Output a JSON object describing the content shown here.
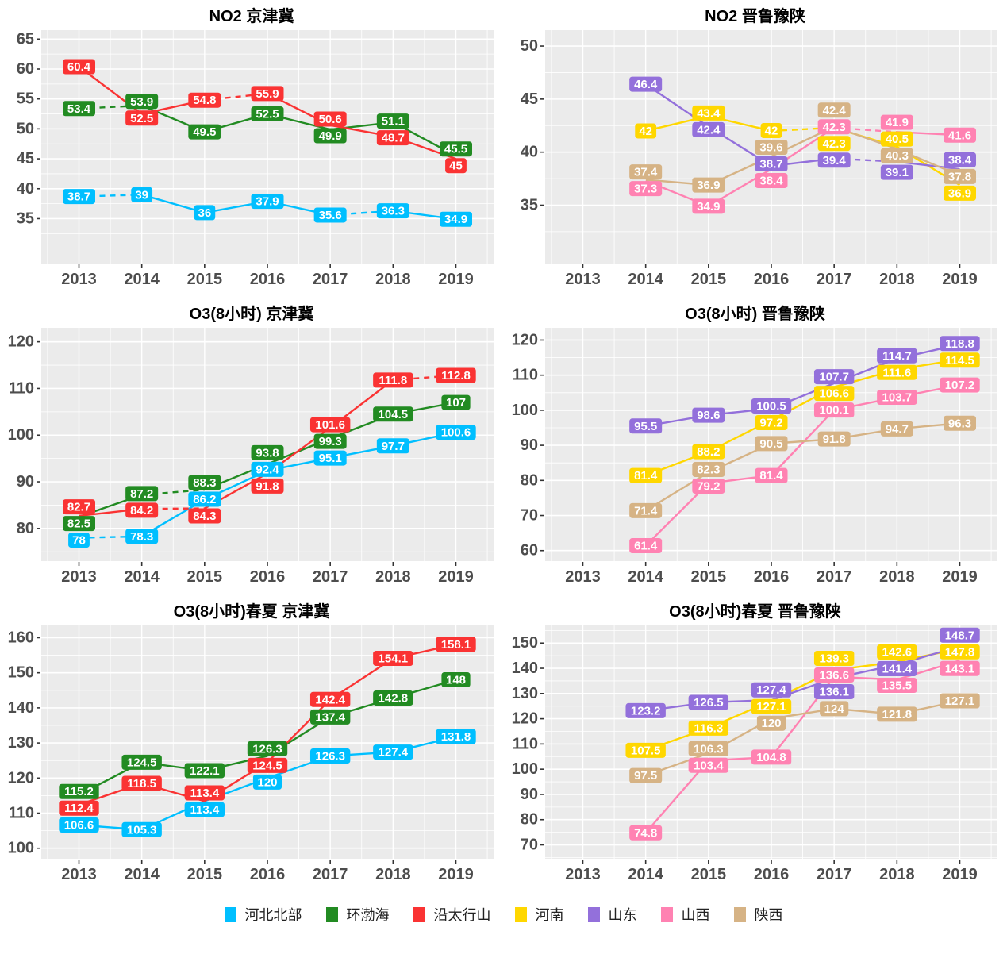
{
  "palette": {
    "河北北部": "#00BFFF",
    "环渤海": "#228B22",
    "沿太行山": "#FA3333",
    "河南": "#FFD700",
    "山东": "#9370DB",
    "山西": "#FF82B2",
    "陕西": "#D6B385"
  },
  "legend": {
    "items": [
      {
        "label": "河北北部",
        "color": "#00BFFF"
      },
      {
        "label": "环渤海",
        "color": "#228B22"
      },
      {
        "label": "沿太行山",
        "color": "#FA3333"
      },
      {
        "label": "河南",
        "color": "#FFD700"
      },
      {
        "label": "山东",
        "color": "#9370DB"
      },
      {
        "label": "山西",
        "color": "#FF82B2"
      },
      {
        "label": "陕西",
        "color": "#D6B385"
      }
    ]
  },
  "chart_data": [
    {
      "type": "line",
      "title": "NO2 京津冀",
      "categories": [
        "2013",
        "2014",
        "2015",
        "2016",
        "2017",
        "2018",
        "2019"
      ],
      "ylim": [
        27.5,
        66.5
      ],
      "yticks": [
        35,
        40,
        45,
        50,
        55,
        60,
        65
      ],
      "grid": true,
      "legend_position": "bottom-shared",
      "series": [
        {
          "name": "河北北部",
          "values": [
            38.7,
            39,
            36,
            37.9,
            35.6,
            36.3,
            34.9
          ],
          "dashed_segments": [
            0,
            4
          ]
        },
        {
          "name": "环渤海",
          "values": [
            53.4,
            53.9,
            49.5,
            52.5,
            49.9,
            51.1,
            45.5
          ],
          "dashed_segments": [
            0
          ]
        },
        {
          "name": "沿太行山",
          "values": [
            60.4,
            52.5,
            54.8,
            55.9,
            50.6,
            48.7,
            45
          ],
          "dashed_segments": [
            2
          ]
        }
      ]
    },
    {
      "type": "line",
      "title": "NO2 晋鲁豫陕",
      "categories": [
        "2013",
        "2014",
        "2015",
        "2016",
        "2017",
        "2018",
        "2019"
      ],
      "ylim": [
        29.5,
        51.5
      ],
      "yticks": [
        35,
        40,
        45,
        50
      ],
      "grid": true,
      "legend_position": "bottom-shared",
      "series": [
        {
          "name": "河南",
          "values": [
            null,
            42,
            43.4,
            42,
            42.3,
            40.5,
            36.9
          ],
          "dashed_segments": [
            3
          ]
        },
        {
          "name": "山东",
          "values": [
            null,
            46.4,
            42.4,
            38.7,
            39.4,
            39.1,
            38.4
          ],
          "dashed_segments": [
            4
          ]
        },
        {
          "name": "山西",
          "values": [
            null,
            37.3,
            34.9,
            38.4,
            42.3,
            41.9,
            41.6
          ],
          "dashed_segments": [
            4
          ]
        },
        {
          "name": "陕西",
          "values": [
            null,
            37.4,
            36.9,
            39.6,
            42.4,
            40.3,
            37.8
          ],
          "dashed_segments": []
        }
      ]
    },
    {
      "type": "line",
      "title": "O3(8小时) 京津冀",
      "categories": [
        "2013",
        "2014",
        "2015",
        "2016",
        "2017",
        "2018",
        "2019"
      ],
      "ylim": [
        73,
        123
      ],
      "yticks": [
        80,
        90,
        100,
        110,
        120
      ],
      "grid": true,
      "legend_position": "bottom-shared",
      "series": [
        {
          "name": "河北北部",
          "values": [
            78,
            78.3,
            86.2,
            92.4,
            95.1,
            97.7,
            100.6
          ],
          "dashed_segments": [
            0
          ]
        },
        {
          "name": "环渤海",
          "values": [
            82.5,
            87.2,
            88.3,
            93.8,
            99.3,
            104.5,
            107
          ],
          "dashed_segments": [
            1
          ]
        },
        {
          "name": "沿太行山",
          "values": [
            82.7,
            84.2,
            84.3,
            91.8,
            101.6,
            111.8,
            112.8
          ],
          "dashed_segments": [
            1,
            5
          ]
        }
      ]
    },
    {
      "type": "line",
      "title": "O3(8小时) 晋鲁豫陕",
      "categories": [
        "2013",
        "2014",
        "2015",
        "2016",
        "2017",
        "2018",
        "2019"
      ],
      "ylim": [
        57,
        123.5
      ],
      "yticks": [
        60,
        70,
        80,
        90,
        100,
        110,
        120
      ],
      "grid": true,
      "legend_position": "bottom-shared",
      "series": [
        {
          "name": "河南",
          "values": [
            null,
            81.4,
            88.2,
            97.2,
            106.6,
            111.6,
            114.5
          ],
          "dashed_segments": []
        },
        {
          "name": "山东",
          "values": [
            null,
            95.5,
            98.6,
            100.5,
            107.7,
            114.7,
            118.8
          ],
          "dashed_segments": []
        },
        {
          "name": "山西",
          "values": [
            null,
            61.4,
            79.2,
            81.4,
            100.1,
            103.7,
            107.2
          ],
          "dashed_segments": []
        },
        {
          "name": "陕西",
          "values": [
            null,
            71.4,
            82.3,
            90.5,
            91.8,
            94.7,
            96.3
          ],
          "dashed_segments": []
        }
      ]
    },
    {
      "type": "line",
      "title": "O3(8小时)春夏 京津冀",
      "categories": [
        "2013",
        "2014",
        "2015",
        "2016",
        "2017",
        "2018",
        "2019"
      ],
      "ylim": [
        97,
        163.5
      ],
      "yticks": [
        100,
        110,
        120,
        130,
        140,
        150,
        160
      ],
      "grid": true,
      "legend_position": "bottom-shared",
      "series": [
        {
          "name": "河北北部",
          "values": [
            106.6,
            105.3,
            113.4,
            120,
            126.3,
            127.4,
            131.8
          ],
          "dashed_segments": []
        },
        {
          "name": "环渤海",
          "values": [
            115.2,
            124.5,
            122.1,
            126.3,
            137.4,
            142.8,
            148
          ],
          "dashed_segments": []
        },
        {
          "name": "沿太行山",
          "values": [
            112.4,
            118.5,
            113.4,
            124.5,
            142.4,
            154.1,
            158.1
          ],
          "dashed_segments": []
        }
      ]
    },
    {
      "type": "line",
      "title": "O3(8小时)春夏 晋鲁豫陕",
      "categories": [
        "2013",
        "2014",
        "2015",
        "2016",
        "2017",
        "2018",
        "2019"
      ],
      "ylim": [
        64.5,
        157
      ],
      "yticks": [
        70,
        80,
        90,
        100,
        110,
        120,
        130,
        140,
        150
      ],
      "grid": true,
      "legend_position": "bottom-shared",
      "series": [
        {
          "name": "河南",
          "values": [
            null,
            107.5,
            116.3,
            127.1,
            139.3,
            142.6,
            147.8
          ],
          "dashed_segments": []
        },
        {
          "name": "山东",
          "values": [
            null,
            123.2,
            126.5,
            127.4,
            136.1,
            141.4,
            148.7
          ],
          "dashed_segments": []
        },
        {
          "name": "山西",
          "values": [
            null,
            74.8,
            103.4,
            104.8,
            136.6,
            135.5,
            143.1
          ],
          "dashed_segments": []
        },
        {
          "name": "陕西",
          "values": [
            null,
            97.5,
            106.3,
            120,
            124,
            121.8,
            127.1
          ],
          "dashed_segments": []
        }
      ]
    }
  ],
  "style": {
    "panel_background": "#EBEBEB",
    "gridline_color": "#FFFFFF",
    "axis_text_color": "#4D4D4D",
    "tick_mark_color": "#333333",
    "label_text_color": "#FFFFFF"
  }
}
